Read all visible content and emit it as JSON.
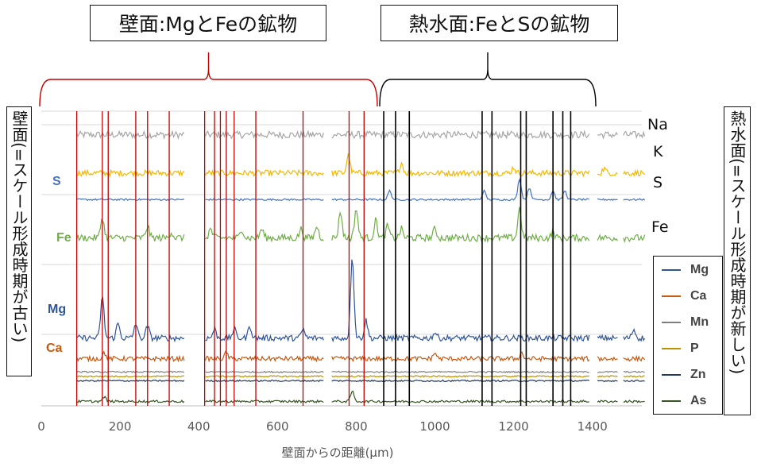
{
  "header": {
    "wall_title": "壁面:MgとFeの鉱物",
    "hydro_title": "熱水面:FeとSの鉱物"
  },
  "side_labels": {
    "left": "壁面(=スケール形成時期が古い)",
    "right": "熱水面(=スケール形成時期が新しい)"
  },
  "chart_data": {
    "type": "line",
    "xlabel": "壁面からの距離(μm)",
    "ylabel": "",
    "xlim": [
      0,
      1550
    ],
    "x_ticks": [
      0,
      200,
      400,
      600,
      800,
      1000,
      1200,
      1400
    ],
    "x_tick_labels": [
      "0",
      "200",
      "400",
      "600",
      "800",
      "1000",
      "1200",
      "1400"
    ],
    "grid": "horizontal",
    "series": [
      {
        "name": "Na",
        "color": "#a6a6a6",
        "label_side": "right",
        "baseline": 0.92,
        "noise": 0.012,
        "peaks": []
      },
      {
        "name": "K",
        "color": "#f2b800",
        "label_side": "right",
        "baseline": 0.79,
        "noise": 0.01,
        "peaks": [
          [
            780,
            0.06
          ],
          [
            915,
            0.035
          ],
          [
            1200,
            0.02
          ],
          [
            1430,
            0.015
          ]
        ]
      },
      {
        "name": "S",
        "color": "#4472c4",
        "label_side": "both",
        "baseline": 0.7,
        "noise": 0.003,
        "peaks": [
          [
            885,
            0.03
          ],
          [
            1125,
            0.03
          ],
          [
            1215,
            0.07
          ],
          [
            1240,
            0.04
          ],
          [
            1300,
            0.03
          ],
          [
            1330,
            0.03
          ]
        ]
      },
      {
        "name": "Fe",
        "color": "#70ad47",
        "label_side": "both",
        "baseline": 0.57,
        "noise": 0.012,
        "peaks": [
          [
            155,
            0.07
          ],
          [
            270,
            0.04
          ],
          [
            330,
            0.02
          ],
          [
            430,
            0.03
          ],
          [
            510,
            0.03
          ],
          [
            560,
            0.03
          ],
          [
            660,
            0.03
          ],
          [
            700,
            0.04
          ],
          [
            760,
            0.09
          ],
          [
            800,
            0.1
          ],
          [
            850,
            0.06
          ],
          [
            880,
            0.04
          ],
          [
            915,
            0.03
          ],
          [
            1000,
            0.03
          ],
          [
            1215,
            0.1
          ],
          [
            1300,
            0.02
          ]
        ]
      },
      {
        "name": "Mg",
        "color": "#2f5597",
        "label_side": "both",
        "baseline": 0.23,
        "noise": 0.01,
        "peaks": [
          [
            155,
            0.14
          ],
          [
            195,
            0.05
          ],
          [
            240,
            0.05
          ],
          [
            270,
            0.04
          ],
          [
            440,
            0.03
          ],
          [
            490,
            0.03
          ],
          [
            530,
            0.04
          ],
          [
            665,
            0.03
          ],
          [
            790,
            0.28
          ],
          [
            825,
            0.06
          ],
          [
            1000,
            0.02
          ],
          [
            1400,
            0.025
          ],
          [
            1505,
            0.03
          ]
        ]
      },
      {
        "name": "Ca",
        "color": "#c55a11",
        "label_side": "both",
        "baseline": 0.16,
        "noise": 0.008,
        "peaks": [
          [
            160,
            0.02
          ],
          [
            470,
            0.02
          ],
          [
            1000,
            0.02
          ],
          [
            1220,
            0.02
          ]
        ]
      },
      {
        "name": "Mn",
        "color": "#7f7f7f",
        "label_side": "legend",
        "baseline": 0.115,
        "noise": 0.0025,
        "peaks": []
      },
      {
        "name": "P",
        "color": "#bf9000",
        "label_side": "legend",
        "baseline": 0.1,
        "noise": 0.0025,
        "peaks": []
      },
      {
        "name": "Zn",
        "color": "#203864",
        "label_side": "legend",
        "baseline": 0.085,
        "noise": 0.0025,
        "peaks": []
      },
      {
        "name": "As",
        "color": "#375623",
        "label_side": "legend",
        "baseline": 0.015,
        "noise": 0.004,
        "peaks": [
          [
            160,
            0.015
          ],
          [
            790,
            0.035
          ]
        ]
      }
    ],
    "gaps": [
      [
        365,
        415
      ],
      [
        720,
        735
      ],
      [
        1395,
        1410
      ],
      [
        1465,
        1478
      ]
    ],
    "red_lines": [
      90,
      155,
      170,
      240,
      270,
      325,
      415,
      440,
      455,
      470,
      490,
      545,
      665,
      782,
      820
    ],
    "black_lines": [
      870,
      900,
      935,
      1120,
      1145,
      1218,
      1232,
      1300,
      1325,
      1345
    ],
    "brackets": {
      "red": {
        "x_start": 50,
        "x_end": 475
      },
      "black": {
        "x_start": 478,
        "x_end": 750
      }
    }
  }
}
